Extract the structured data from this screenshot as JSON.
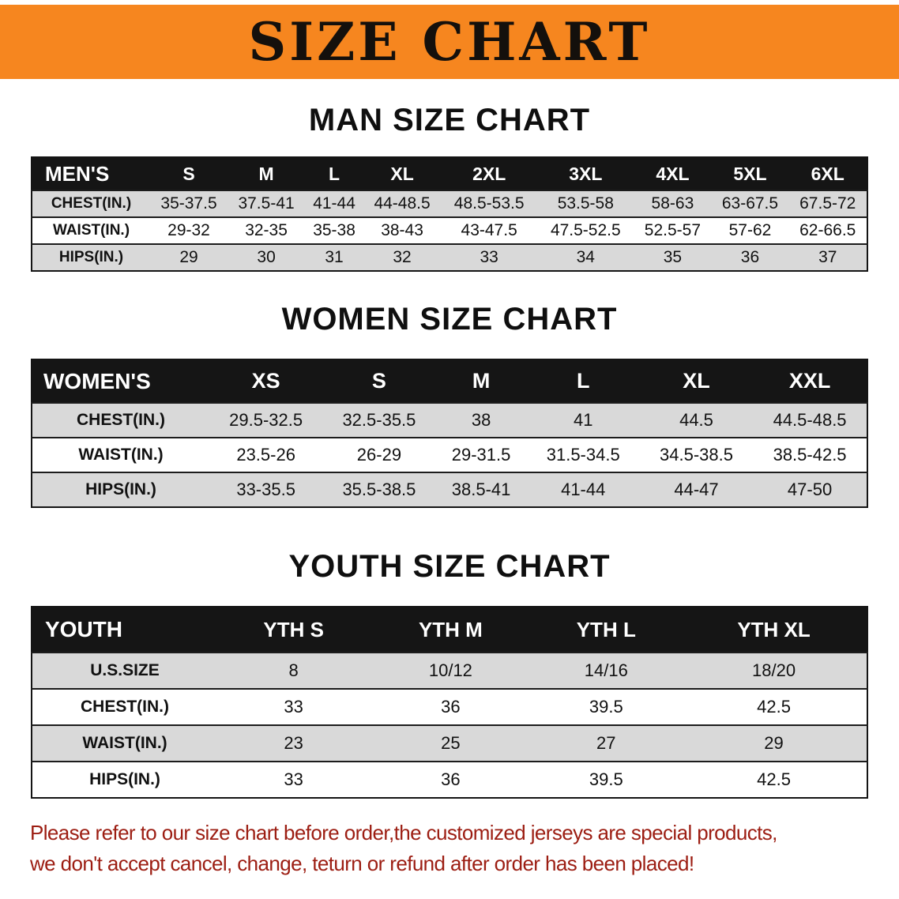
{
  "banner": {
    "title": "SIZE CHART",
    "bg": "#f6861f"
  },
  "sections": [
    {
      "id": "men",
      "heading": "MAN SIZE CHART",
      "table": {
        "header": [
          "MEN'S",
          "S",
          "M",
          "L",
          "XL",
          "2XL",
          "3XL",
          "4XL",
          "5XL",
          "6XL"
        ],
        "rows": [
          [
            "CHEST(IN.)",
            "35-37.5",
            "37.5-41",
            "41-44",
            "44-48.5",
            "48.5-53.5",
            "53.5-58",
            "58-63",
            "63-67.5",
            "67.5-72"
          ],
          [
            "WAIST(IN.)",
            "29-32",
            "32-35",
            "35-38",
            "38-43",
            "43-47.5",
            "47.5-52.5",
            "52.5-57",
            "57-62",
            "62-66.5"
          ],
          [
            "HIPS(IN.)",
            "29",
            "30",
            "31",
            "32",
            "33",
            "34",
            "35",
            "36",
            "37"
          ]
        ]
      }
    },
    {
      "id": "women",
      "heading": "WOMEN SIZE CHART",
      "table": {
        "header": [
          "WOMEN'S",
          "XS",
          "S",
          "M",
          "L",
          "XL",
          "XXL"
        ],
        "rows": [
          [
            "CHEST(IN.)",
            "29.5-32.5",
            "32.5-35.5",
            "38",
            "41",
            "44.5",
            "44.5-48.5"
          ],
          [
            "WAIST(IN.)",
            "23.5-26",
            "26-29",
            "29-31.5",
            "31.5-34.5",
            "34.5-38.5",
            "38.5-42.5"
          ],
          [
            "HIPS(IN.)",
            "33-35.5",
            "35.5-38.5",
            "38.5-41",
            "41-44",
            "44-47",
            "47-50"
          ]
        ]
      }
    },
    {
      "id": "youth",
      "heading": "YOUTH SIZE CHART",
      "table": {
        "header": [
          "YOUTH",
          "YTH S",
          "YTH M",
          "YTH L",
          "YTH XL"
        ],
        "rows": [
          [
            "U.S.SIZE",
            "8",
            "10/12",
            "14/16",
            "18/20"
          ],
          [
            "CHEST(IN.)",
            "33",
            "36",
            "39.5",
            "42.5"
          ],
          [
            "WAIST(IN.)",
            "23",
            "25",
            "27",
            "29"
          ],
          [
            "HIPS(IN.)",
            "33",
            "36",
            "39.5",
            "42.5"
          ]
        ]
      }
    }
  ],
  "footer": {
    "line1": "Please refer to our size chart before order,the customized jerseys are special products,",
    "line2": "we don't accept cancel, change, teturn or refund after order has been placed!",
    "color": "#9c1d12"
  },
  "colors": {
    "banner_bg": "#f6861f",
    "table_header_bg": "#151515",
    "row_stripe": "#d9d9d9",
    "disclaimer_red": "#9c1d12"
  }
}
